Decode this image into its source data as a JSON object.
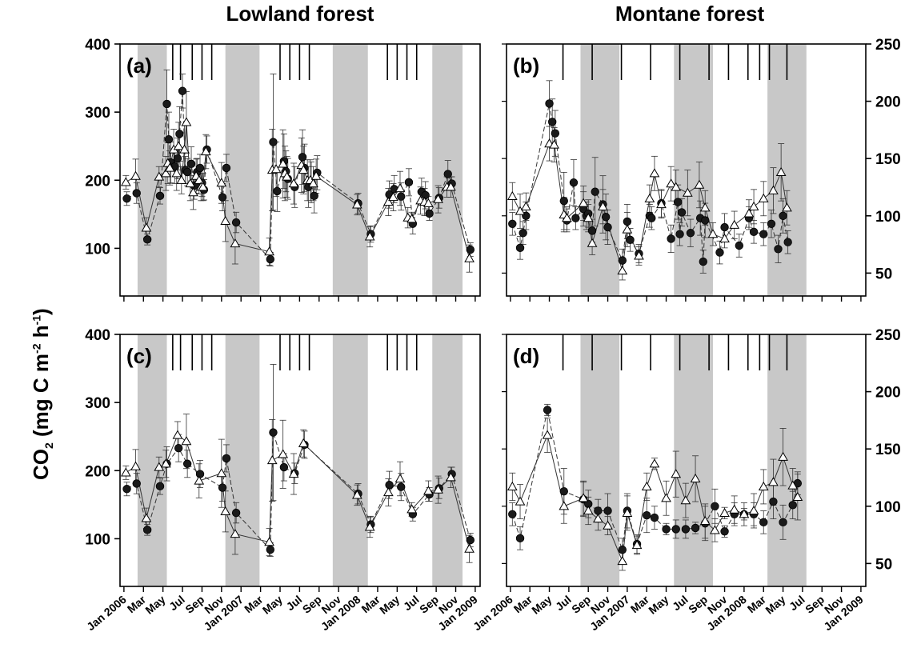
{
  "titles": {
    "left": "Lowland forest",
    "right": "Montane forest"
  },
  "ylabel": {
    "base": "CO",
    "sub": "2",
    "open": " (mg C m",
    "sup1": "-2",
    "mid": " h",
    "sup2": "-1",
    "close": ")"
  },
  "axes": {
    "left": {
      "ylim": [
        30,
        400
      ],
      "ticks": [
        100,
        200,
        300,
        400
      ]
    },
    "right": {
      "ylim": [
        30,
        250
      ],
      "ticks": [
        50,
        100,
        150,
        200,
        250
      ]
    }
  },
  "x_axes": {
    "left": {
      "xlim": [
        -0.4,
        36.5
      ],
      "ticks": [
        0,
        2,
        4,
        6,
        8,
        10,
        12,
        14,
        16,
        18,
        20,
        22,
        24,
        26,
        28,
        30,
        32,
        34,
        36
      ],
      "labels": [
        "Jan 2006",
        "Mar",
        "May",
        "Jul",
        "Sep",
        "Nov",
        "Jan 2007",
        "Mar",
        "May",
        "Jul",
        "Sep",
        "Nov",
        "Jan 2008",
        "Mar",
        "May",
        "Jul",
        "Sep",
        "Nov",
        "Jan 2009"
      ]
    },
    "right": {
      "xlim": [
        -0.4,
        36.5
      ],
      "ticks": [
        0,
        2,
        4,
        6,
        8,
        10,
        12,
        14,
        16,
        18,
        20,
        22,
        24,
        26,
        28,
        30,
        32,
        34,
        36
      ],
      "labels": [
        "Jan 2006",
        "Mar",
        "May",
        "Jul",
        "Sep",
        "Nov",
        "Jan 2007",
        "Mar",
        "May",
        "Jul",
        "Sep",
        "Nov",
        "Jan 2008",
        "Mar",
        "May",
        "Jul",
        "Sep",
        "Nov",
        "Jan 2009"
      ]
    }
  },
  "colors": {
    "shade": "#c8c8c8",
    "filled": "#1a1a1a",
    "open_fill": "#ffffff",
    "line": "#333333"
  },
  "chart_data": [
    {
      "id": "a",
      "label": "(a)",
      "type": "line",
      "side": "left",
      "shaded": [
        [
          1.4,
          4.4
        ],
        [
          10.4,
          13.9
        ],
        [
          21.4,
          25.0
        ],
        [
          31.6,
          34.7
        ]
      ],
      "markers": [
        5.0,
        5.8,
        7.0,
        8.0,
        9.0,
        16.0,
        17.0,
        18.0,
        19.0,
        27.0,
        28.0,
        29.0,
        30.0
      ],
      "series": [
        {
          "name": "",
          "marker": "circle",
          "x": [
            0.3,
            1.3,
            2.4,
            3.7,
            4.4,
            4.6,
            4.8,
            5.2,
            5.5,
            5.7,
            6.0,
            6.3,
            6.5,
            6.9,
            7.2,
            7.5,
            7.8,
            8.0,
            8.2,
            8.5,
            10.1,
            10.5,
            11.5,
            15.0,
            15.3,
            15.7,
            16.4,
            16.6,
            16.8,
            17.5,
            18.3,
            18.5,
            18.9,
            19.2,
            19.5,
            19.8,
            24.0,
            25.3,
            27.2,
            27.7,
            28.4,
            29.2,
            29.6,
            30.5,
            30.9,
            31.3,
            32.3,
            33.2,
            33.6,
            35.5
          ],
          "y": [
            173,
            181,
            113,
            177,
            312,
            260,
            226,
            220,
            232,
            268,
            331,
            215,
            212,
            224,
            192,
            212,
            218,
            196,
            186,
            245,
            175,
            218,
            138,
            84,
            256,
            184,
            228,
            213,
            202,
            190,
            234,
            218,
            190,
            197,
            177,
            211,
            166,
            121,
            179,
            187,
            176,
            197,
            136,
            183,
            178,
            151,
            174,
            209,
            195,
            98
          ],
          "yerr": [
            10,
            15,
            8,
            12,
            50,
            40,
            30,
            25,
            30,
            40,
            25,
            20,
            20,
            25,
            20,
            20,
            20,
            20,
            15,
            20,
            20,
            20,
            15,
            10,
            100,
            30,
            40,
            30,
            30,
            30,
            40,
            35,
            30,
            30,
            25,
            25,
            15,
            12,
            20,
            20,
            20,
            20,
            15,
            20,
            20,
            10,
            15,
            20,
            10,
            10
          ]
        },
        {
          "name": "",
          "marker": "triangle",
          "x": [
            0.2,
            1.2,
            2.3,
            3.6,
            4.3,
            4.5,
            4.7,
            5.1,
            5.4,
            5.6,
            5.9,
            6.2,
            6.4,
            6.8,
            7.1,
            7.4,
            7.7,
            7.9,
            8.1,
            8.4,
            10.0,
            10.4,
            11.4,
            14.9,
            15.2,
            15.6,
            16.3,
            16.5,
            16.7,
            17.4,
            18.2,
            18.4,
            18.8,
            19.1,
            19.4,
            19.7,
            23.9,
            25.2,
            27.1,
            27.6,
            28.3,
            29.1,
            29.5,
            30.4,
            30.8,
            31.2,
            32.2,
            33.1,
            33.5,
            35.4
          ],
          "y": [
            197,
            206,
            130,
            205,
            210,
            225,
            218,
            245,
            210,
            250,
            200,
            245,
            285,
            195,
            182,
            206,
            200,
            190,
            190,
            242,
            196,
            140,
            107,
            95,
            215,
            216,
            224,
            210,
            205,
            195,
            222,
            215,
            200,
            200,
            195,
            206,
            164,
            117,
            168,
            175,
            188,
            145,
            143,
            170,
            168,
            166,
            172,
            190,
            190,
            85
          ],
          "yerr": [
            10,
            25,
            15,
            15,
            25,
            30,
            25,
            30,
            25,
            35,
            20,
            35,
            45,
            25,
            25,
            25,
            20,
            20,
            20,
            25,
            30,
            30,
            30,
            20,
            60,
            40,
            50,
            40,
            30,
            30,
            40,
            35,
            30,
            30,
            25,
            25,
            15,
            15,
            20,
            20,
            25,
            15,
            10,
            20,
            20,
            10,
            20,
            15,
            15,
            20
          ]
        }
      ]
    },
    {
      "id": "b",
      "label": "(b)",
      "type": "line",
      "side": "right",
      "shaded": [
        [
          7.2,
          11.2
        ],
        [
          16.8,
          20.8
        ],
        [
          26.4,
          30.4
        ]
      ],
      "markers": [
        5.4,
        8.4,
        11.4,
        14.4,
        17.4,
        20.4,
        22.4,
        24.4,
        25.6,
        26.6,
        28.4
      ],
      "series": [
        {
          "name": "",
          "marker": "circle",
          "x": [
            0.2,
            1.0,
            1.3,
            1.6,
            4.0,
            4.3,
            4.6,
            5.5,
            5.8,
            6.5,
            6.7,
            7.5,
            7.8,
            8.0,
            8.4,
            8.7,
            9.5,
            9.8,
            10.0,
            11.5,
            12.0,
            12.3,
            13.2,
            14.3,
            14.5,
            15.5,
            16.5,
            17.2,
            17.4,
            17.6,
            18.5,
            19.5,
            19.8,
            20.0,
            21.5,
            22.0,
            23.5,
            24.5,
            25.0,
            26.0,
            26.8,
            27.5,
            28.0,
            28.5
          ],
          "y": [
            93,
            72,
            85,
            100,
            198,
            182,
            172,
            113,
            96,
            129,
            98,
            106,
            100,
            102,
            87,
            121,
            110,
            99,
            90,
            61,
            95,
            79,
            67,
            100,
            98,
            111,
            80,
            112,
            84,
            103,
            85,
            98,
            60,
            96,
            68,
            90,
            74,
            98,
            86,
            84,
            93,
            71,
            100,
            77
          ],
          "yerr": [
            10,
            10,
            10,
            12,
            20,
            20,
            20,
            25,
            10,
            20,
            10,
            15,
            12,
            12,
            10,
            30,
            25,
            20,
            15,
            10,
            15,
            10,
            8,
            10,
            10,
            12,
            12,
            15,
            10,
            12,
            12,
            15,
            10,
            15,
            10,
            12,
            10,
            10,
            10,
            10,
            12,
            12,
            15,
            10
          ],
          "__note": ""
        },
        {
          "name": "",
          "marker": "triangle",
          "x": [
            0.2,
            1.0,
            1.6,
            4.0,
            4.5,
            5.5,
            5.8,
            7.5,
            8.0,
            8.4,
            9.5,
            11.5,
            12.0,
            13.2,
            14.3,
            14.8,
            15.5,
            16.5,
            17.0,
            18.2,
            19.4,
            20.0,
            20.8,
            22.0,
            23.0,
            24.5,
            25.0,
            26.0,
            27.0,
            27.8,
            28.4
          ],
          "y": [
            117,
            104,
            108,
            163,
            162,
            101,
            98,
            111,
            98,
            76,
            108,
            52,
            88,
            65,
            115,
            137,
            110,
            128,
            125,
            120,
            127,
            107,
            84,
            80,
            92,
            102,
            108,
            115,
            122,
            138,
            107
          ],
          "yerr": [
            12,
            15,
            12,
            15,
            15,
            15,
            10,
            15,
            12,
            10,
            15,
            8,
            15,
            8,
            12,
            15,
            12,
            15,
            15,
            20,
            20,
            15,
            10,
            8,
            12,
            12,
            15,
            15,
            20,
            25,
            15
          ]
        }
      ]
    },
    {
      "id": "c",
      "label": "(c)",
      "type": "line",
      "side": "left",
      "shaded": [
        [
          1.4,
          4.4
        ],
        [
          10.4,
          13.9
        ],
        [
          21.4,
          25.0
        ],
        [
          31.6,
          34.7
        ]
      ],
      "markers": [
        5.0,
        5.8,
        7.0,
        8.0,
        9.0,
        16.0,
        17.0,
        18.0,
        19.0,
        27.0,
        28.0,
        29.0,
        30.0
      ],
      "series": [
        {
          "name": "",
          "marker": "circle",
          "x": [
            0.3,
            1.3,
            2.4,
            3.7,
            4.4,
            5.6,
            6.5,
            7.8,
            10.1,
            10.5,
            11.5,
            15.0,
            15.3,
            16.4,
            17.5,
            18.5,
            24.0,
            25.3,
            27.2,
            28.4,
            29.6,
            31.3,
            32.3,
            33.6,
            35.5
          ],
          "y": [
            173,
            181,
            113,
            177,
            210,
            233,
            210,
            195,
            175,
            218,
            138,
            84,
            256,
            205,
            196,
            238,
            166,
            121,
            179,
            176,
            136,
            165,
            174,
            195,
            98
          ],
          "yerr": [
            10,
            15,
            8,
            12,
            25,
            20,
            20,
            20,
            20,
            20,
            15,
            10,
            100,
            20,
            15,
            20,
            15,
            12,
            20,
            20,
            10,
            10,
            15,
            10,
            10
          ]
        },
        {
          "name": "",
          "marker": "triangle",
          "x": [
            0.2,
            1.2,
            2.3,
            3.6,
            4.3,
            5.5,
            6.4,
            7.7,
            10.0,
            10.4,
            11.4,
            14.9,
            15.2,
            16.3,
            17.4,
            18.4,
            23.9,
            25.2,
            27.1,
            28.3,
            29.5,
            31.2,
            32.2,
            33.5,
            35.4
          ],
          "y": [
            197,
            206,
            130,
            205,
            210,
            252,
            243,
            185,
            196,
            140,
            107,
            95,
            215,
            224,
            195,
            240,
            164,
            117,
            168,
            188,
            143,
            170,
            172,
            190,
            85
          ],
          "yerr": [
            10,
            25,
            15,
            15,
            20,
            20,
            40,
            25,
            50,
            30,
            30,
            20,
            60,
            50,
            30,
            20,
            15,
            15,
            20,
            25,
            10,
            15,
            20,
            15,
            20
          ]
        }
      ]
    },
    {
      "id": "d",
      "label": "(d)",
      "type": "line",
      "side": "right",
      "shaded": [
        [
          7.2,
          11.2
        ],
        [
          16.8,
          20.8
        ],
        [
          26.4,
          30.4
        ]
      ],
      "markers": [
        5.4,
        8.4,
        11.4,
        14.4,
        17.4,
        20.4,
        22.4,
        24.4,
        25.6,
        26.6,
        28.4
      ],
      "series": [
        {
          "name": "",
          "marker": "circle",
          "x": [
            0.2,
            1.0,
            3.8,
            5.5,
            7.5,
            8.0,
            9.0,
            10.0,
            11.5,
            12.0,
            13.0,
            14.0,
            14.8,
            16.0,
            17.0,
            18.0,
            19.0,
            20.0,
            21.0,
            22.0,
            23.0,
            24.0,
            25.0,
            26.0,
            27.0,
            28.0,
            29.0,
            29.5
          ],
          "y": [
            93,
            72,
            184,
            113,
            106,
            102,
            96,
            96,
            62,
            96,
            67,
            92,
            90,
            80,
            80,
            80,
            81,
            85,
            100,
            78,
            93,
            93,
            93,
            86,
            104,
            86,
            101,
            120
          ],
          "yerr": [
            10,
            10,
            5,
            20,
            15,
            12,
            10,
            15,
            10,
            15,
            8,
            15,
            10,
            5,
            8,
            8,
            5,
            15,
            15,
            5,
            10,
            5,
            10,
            10,
            15,
            15,
            12,
            10
          ]
        },
        {
          "name": "",
          "marker": "triangle",
          "x": [
            0.2,
            1.0,
            3.8,
            5.5,
            7.5,
            8.0,
            9.0,
            10.0,
            11.5,
            12.0,
            13.0,
            14.0,
            14.8,
            16.0,
            17.0,
            18.0,
            19.0,
            20.0,
            21.0,
            22.0,
            23.0,
            24.0,
            25.0,
            26.0,
            27.0,
            28.0,
            29.0,
            29.5
          ],
          "y": [
            117,
            104,
            162,
            100,
            107,
            96,
            89,
            83,
            52,
            94,
            66,
            117,
            137,
            107,
            128,
            105,
            124,
            87,
            79,
            94,
            97,
            93,
            96,
            117,
            121,
            143,
            118,
            108
          ],
          "yerr": [
            12,
            15,
            15,
            15,
            15,
            12,
            10,
            8,
            8,
            15,
            8,
            12,
            5,
            15,
            20,
            15,
            20,
            15,
            10,
            5,
            12,
            10,
            15,
            15,
            20,
            25,
            15,
            20
          ]
        }
      ]
    }
  ]
}
